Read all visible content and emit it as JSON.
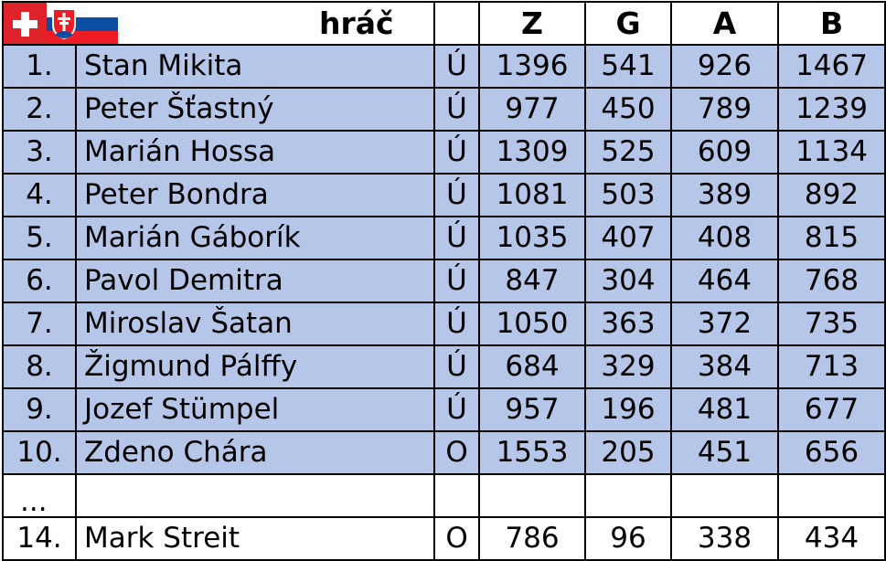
{
  "header": {
    "player_label": "hráč",
    "col_z": "Z",
    "col_g": "G",
    "col_a": "A",
    "col_b": "B",
    "flags": [
      "switzerland-flag-icon",
      "slovakia-flag-icon"
    ]
  },
  "colors": {
    "highlight_row": "#b5c6e8",
    "border": "#000000"
  },
  "rows": [
    {
      "rank": "1.",
      "name": "Stan Mikita",
      "status": "Ú",
      "z": "1396",
      "g": "541",
      "a": "926",
      "b": "1467"
    },
    {
      "rank": "2.",
      "name": "Peter Šťastný",
      "status": "Ú",
      "z": "977",
      "g": "450",
      "a": "789",
      "b": "1239"
    },
    {
      "rank": "3.",
      "name": "Marián Hossa",
      "status": "Ú",
      "z": "1309",
      "g": "525",
      "a": "609",
      "b": "1134"
    },
    {
      "rank": "4.",
      "name": "Peter Bondra",
      "status": "Ú",
      "z": "1081",
      "g": "503",
      "a": "389",
      "b": "892"
    },
    {
      "rank": "5.",
      "name": "Marián Gáborík",
      "status": "Ú",
      "z": "1035",
      "g": "407",
      "a": "408",
      "b": "815"
    },
    {
      "rank": "6.",
      "name": "Pavol Demitra",
      "status": "Ú",
      "z": "847",
      "g": "304",
      "a": "464",
      "b": "768"
    },
    {
      "rank": "7.",
      "name": "Miroslav Šatan",
      "status": "Ú",
      "z": "1050",
      "g": "363",
      "a": "372",
      "b": "735"
    },
    {
      "rank": "8.",
      "name": "Žigmund Pálffy",
      "status": "Ú",
      "z": "684",
      "g": "329",
      "a": "384",
      "b": "713"
    },
    {
      "rank": "9.",
      "name": "Jozef Stümpel",
      "status": "Ú",
      "z": "957",
      "g": "196",
      "a": "481",
      "b": "677"
    },
    {
      "rank": "10.",
      "name": "Zdeno Chára",
      "status": "O",
      "z": "1553",
      "g": "205",
      "a": "451",
      "b": "656"
    }
  ],
  "gap_row": {
    "rank": "..."
  },
  "last_row": {
    "rank": "14.",
    "name": "Mark Streit",
    "status": "O",
    "z": "786",
    "g": "96",
    "a": "338",
    "b": "434"
  }
}
